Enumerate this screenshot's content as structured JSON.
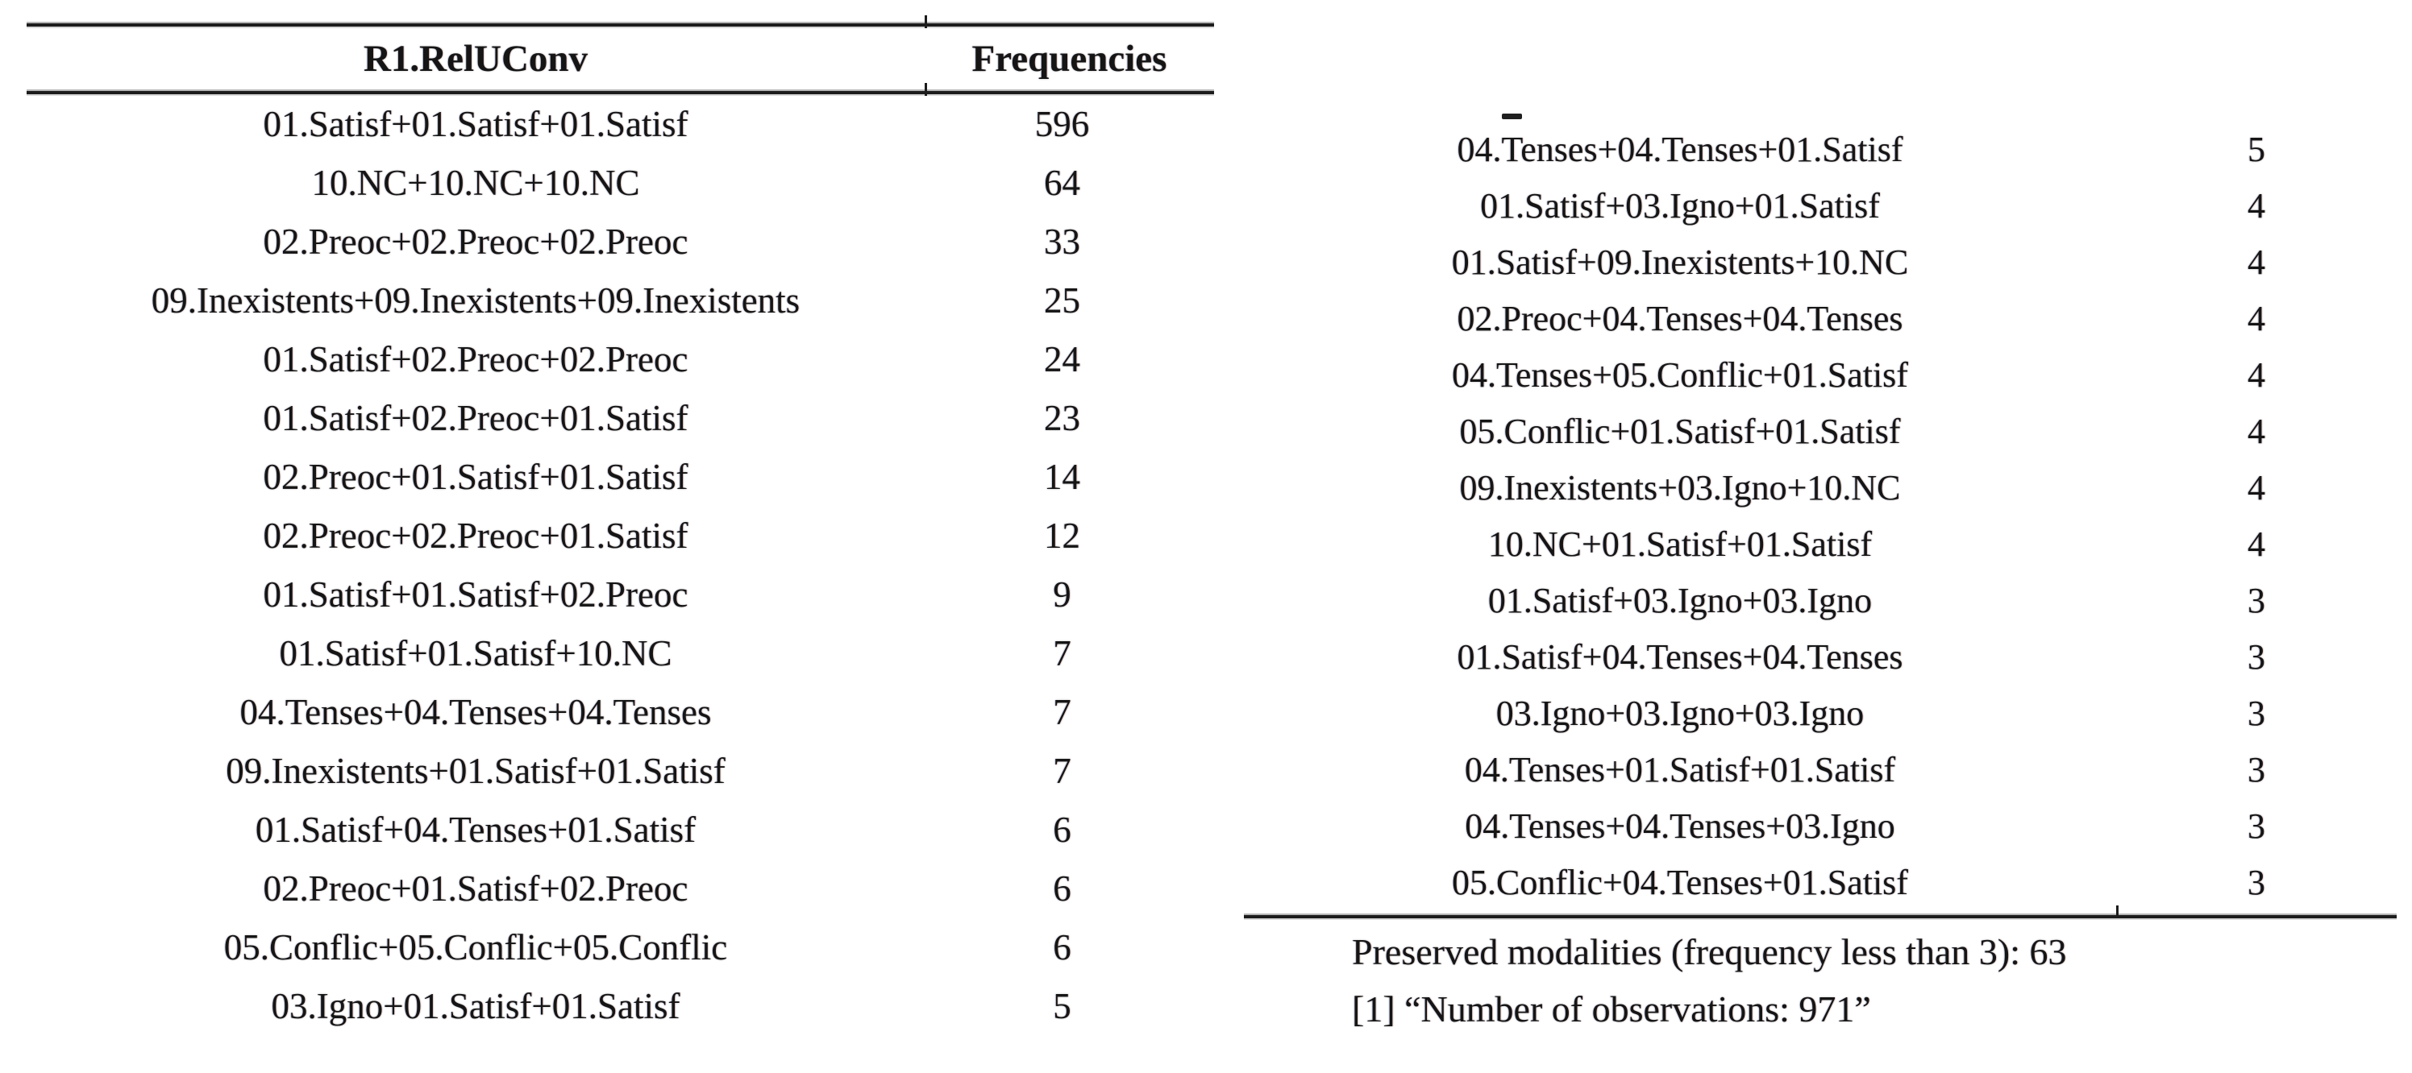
{
  "left_table": {
    "col_headers": [
      "R1.RelUConv",
      "Frequencies"
    ],
    "rows": [
      [
        "01.Satisf+01.Satisf+01.Satisf",
        "596"
      ],
      [
        "10.NC+10.NC+10.NC",
        "64"
      ],
      [
        "02.Preoc+02.Preoc+02.Preoc",
        "33"
      ],
      [
        "09.Inexistents+09.Inexistents+09.Inexistents",
        "25"
      ],
      [
        "01.Satisf+02.Preoc+02.Preoc",
        "24"
      ],
      [
        "01.Satisf+02.Preoc+01.Satisf",
        "23"
      ],
      [
        "02.Preoc+01.Satisf+01.Satisf",
        "14"
      ],
      [
        "02.Preoc+02.Preoc+01.Satisf",
        "12"
      ],
      [
        "01.Satisf+01.Satisf+02.Preoc",
        "9"
      ],
      [
        "01.Satisf+01.Satisf+10.NC",
        "7"
      ],
      [
        "04.Tenses+04.Tenses+04.Tenses",
        "7"
      ],
      [
        "09.Inexistents+01.Satisf+01.Satisf",
        "7"
      ],
      [
        "01.Satisf+04.Tenses+01.Satisf",
        "6"
      ],
      [
        "02.Preoc+01.Satisf+02.Preoc",
        "6"
      ],
      [
        "05.Conflic+05.Conflic+05.Conflic",
        "6"
      ],
      [
        "03.Igno+01.Satisf+01.Satisf",
        "5"
      ]
    ]
  },
  "right_table": {
    "top_dash": "",
    "rows": [
      [
        "04.Tenses+04.Tenses+01.Satisf",
        "5"
      ],
      [
        "01.Satisf+03.Igno+01.Satisf",
        "4"
      ],
      [
        "01.Satisf+09.Inexistents+10.NC",
        "4"
      ],
      [
        "02.Preoc+04.Tenses+04.Tenses",
        "4"
      ],
      [
        "04.Tenses+05.Conflic+01.Satisf",
        "4"
      ],
      [
        "05.Conflic+01.Satisf+01.Satisf",
        "4"
      ],
      [
        "09.Inexistents+03.Igno+10.NC",
        "4"
      ],
      [
        "10.NC+01.Satisf+01.Satisf",
        "4"
      ],
      [
        "01.Satisf+03.Igno+03.Igno",
        "3"
      ],
      [
        "01.Satisf+04.Tenses+04.Tenses",
        "3"
      ],
      [
        "03.Igno+03.Igno+03.Igno",
        "3"
      ],
      [
        "04.Tenses+01.Satisf+01.Satisf",
        "3"
      ],
      [
        "04.Tenses+04.Tenses+03.Igno",
        "3"
      ],
      [
        "05.Conflic+04.Tenses+01.Satisf",
        "3"
      ]
    ]
  },
  "footnotes": {
    "preserved": "Preserved modalities (frequency less than 3): 63",
    "observations": "[1] “Number of observations: 971”"
  },
  "colors": {
    "text": "#151515",
    "rule": "#1c1c1c",
    "background": "#ffffff"
  }
}
